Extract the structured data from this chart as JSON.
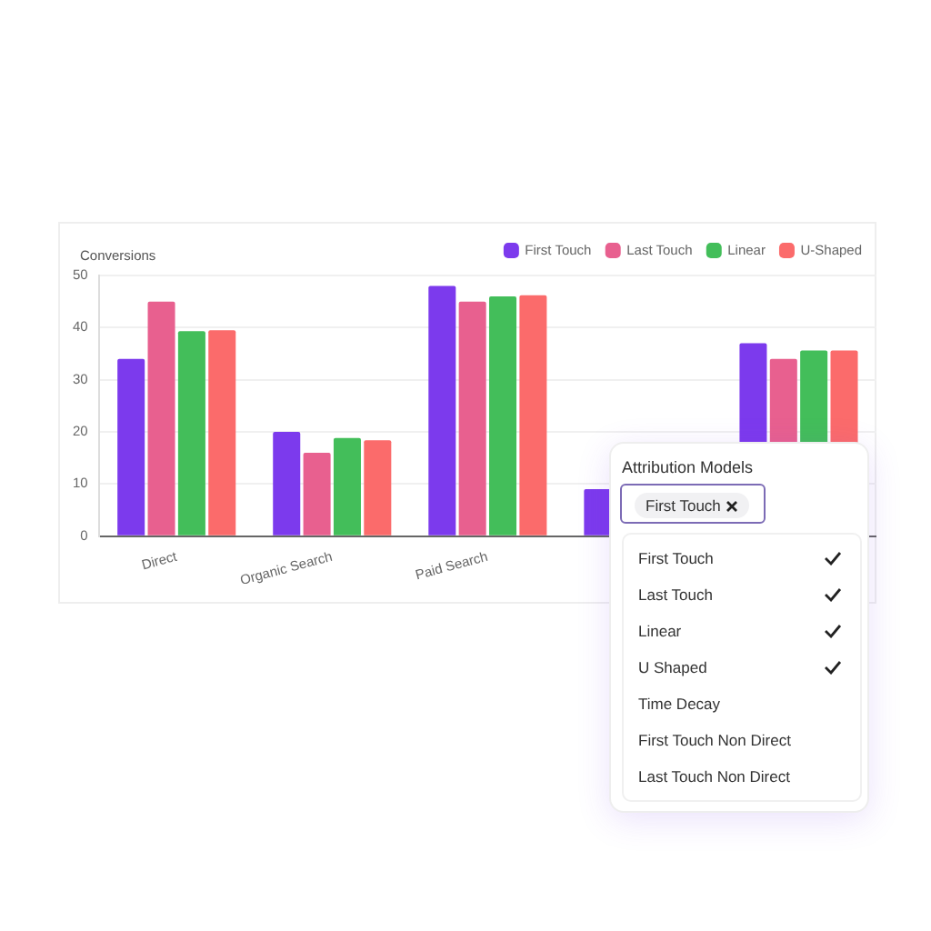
{
  "chart_data": {
    "type": "bar",
    "ylabel": "Conversions",
    "categories": [
      "Direct",
      "Organic Search",
      "Paid Search",
      null,
      null
    ],
    "series": [
      {
        "name": "First Touch",
        "color": "#7c3aed",
        "values": [
          34,
          20,
          48,
          9,
          37
        ]
      },
      {
        "name": "Last Touch",
        "color": "#e8608f",
        "values": [
          45,
          16,
          45,
          null,
          34
        ]
      },
      {
        "name": "Linear",
        "color": "#43be5a",
        "values": [
          39.3,
          18.8,
          46,
          null,
          35.6
        ]
      },
      {
        "name": "U-Shaped",
        "color": "#fb6b6b",
        "values": [
          39.5,
          18.4,
          46.2,
          null,
          35.6
        ]
      }
    ],
    "ylim": [
      0,
      50
    ],
    "yticks": [
      0,
      10,
      20,
      30,
      40,
      50
    ],
    "grid": "y",
    "legend": "top right",
    "annotations": [
      "Attribution Models",
      "First Touch",
      "First Touch",
      "Last Touch",
      "Linear",
      "U Shaped",
      "Time Decay",
      "First Touch Non Direct",
      "Last Touch Non Direct"
    ]
  }
}
